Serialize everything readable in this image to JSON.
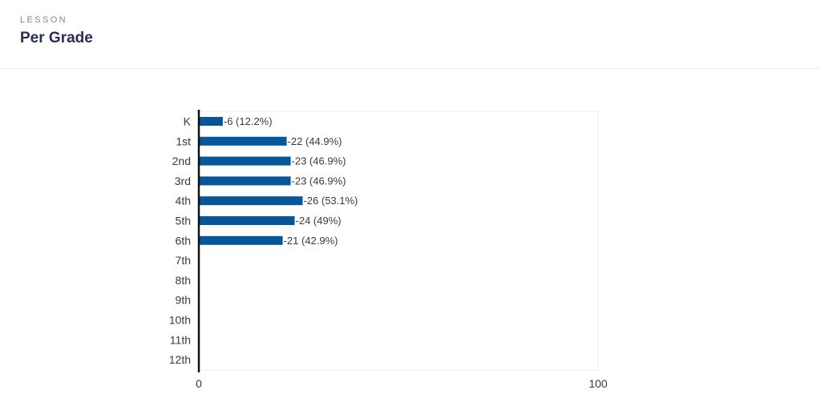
{
  "header": {
    "kicker": "LESSON",
    "title": "Per Grade"
  },
  "chart_data": {
    "type": "bar",
    "orientation": "horizontal",
    "title": "",
    "xlabel": "",
    "ylabel": "",
    "xlim": [
      0,
      100
    ],
    "x_tick_labels": [
      "0",
      "100"
    ],
    "grid": false,
    "bar_color": "#06569a",
    "categories": [
      "K",
      "1st",
      "2nd",
      "3rd",
      "4th",
      "5th",
      "6th",
      "7th",
      "8th",
      "9th",
      "10th",
      "11th",
      "12th"
    ],
    "values": [
      6,
      22,
      23,
      23,
      26,
      24,
      21,
      null,
      null,
      null,
      null,
      null,
      null
    ],
    "data_labels": [
      "-6 (12.2%)",
      "-22 (44.9%)",
      "-23 (46.9%)",
      "-23 (46.9%)",
      "-26 (53.1%)",
      "-24 (49%)",
      "-21 (42.9%)",
      null,
      null,
      null,
      null,
      null,
      null
    ]
  }
}
